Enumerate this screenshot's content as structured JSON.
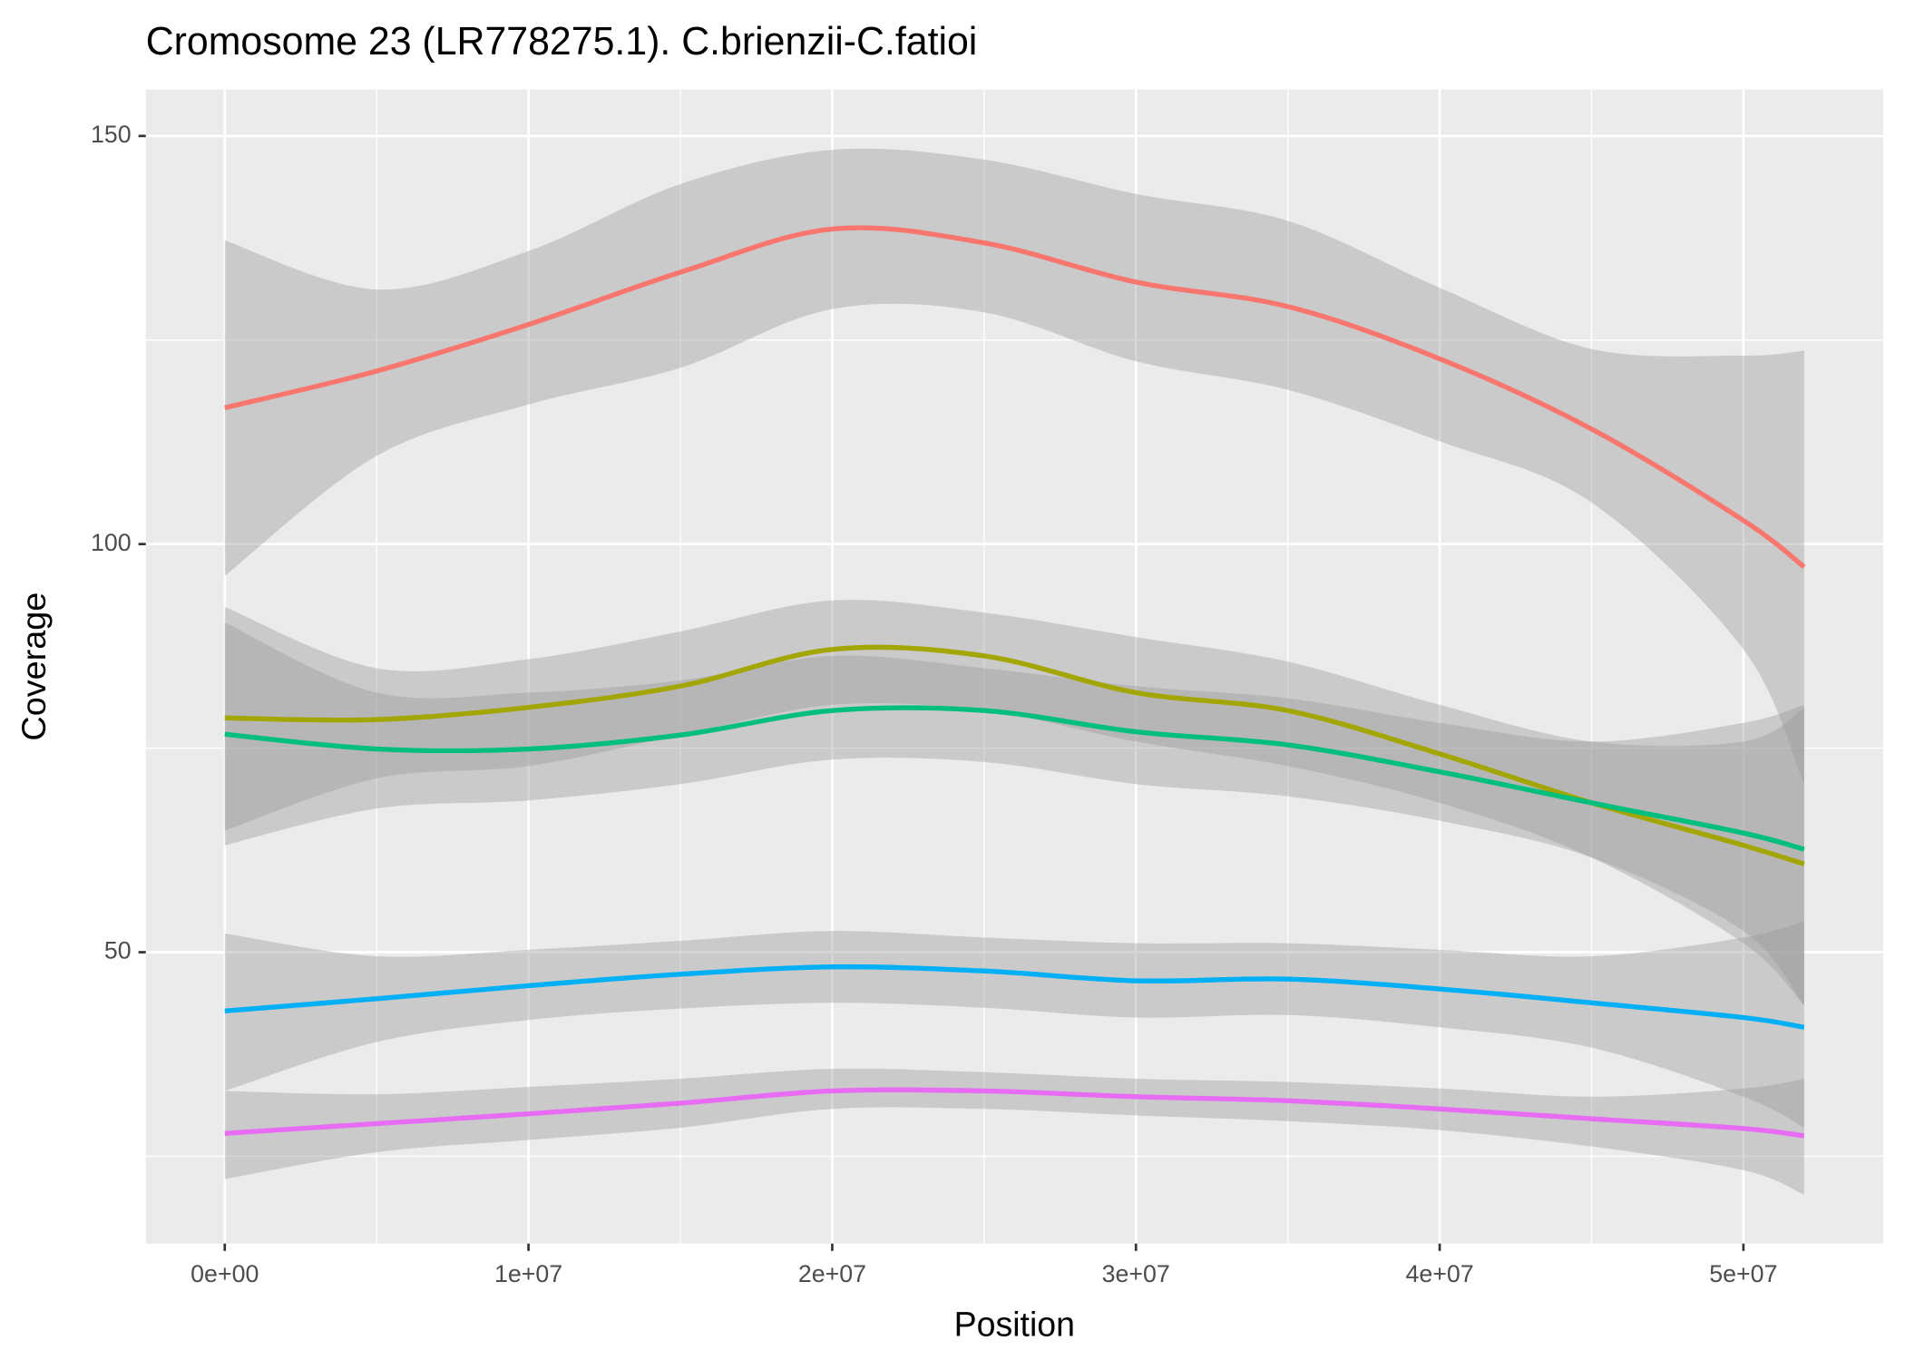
{
  "chart_data": {
    "type": "line",
    "title": "Cromosome 23 (LR778275.1). C.brienzii-C.fatioi",
    "x_label": "Position",
    "y_label": "Coverage",
    "x": [
      0,
      5000000,
      10000000,
      15000000,
      20000000,
      25000000,
      30000000,
      35000000,
      40000000,
      45000000,
      50000000,
      52000000
    ],
    "series": [
      {
        "color": "#F8766D",
        "values": [
          116.7,
          121.2,
          126.9,
          133.3,
          138.6,
          136.9,
          132.1,
          129.1,
          122.7,
          114.1,
          102.9,
          97.2
        ],
        "upper": [
          137.2,
          131.2,
          135.9,
          144.1,
          148.3,
          147.1,
          142.9,
          139.6,
          131.4,
          123.9,
          123.1,
          123.7
        ],
        "lower": [
          96.1,
          110.8,
          117.1,
          121.6,
          128.8,
          128.4,
          122.4,
          118.9,
          112.6,
          105.1,
          87.1,
          70.6
        ]
      },
      {
        "color": "#A3A500",
        "values": [
          78.7,
          78.5,
          80,
          82.6,
          87.1,
          86.3,
          81.8,
          79.6,
          74.3,
          68.3,
          63.1,
          60.8
        ],
        "upper": [
          92.3,
          84.8,
          85.9,
          89.3,
          93.1,
          91.6,
          88.6,
          85.6,
          80.3,
          75.8,
          75.8,
          79.9
        ],
        "lower": [
          64.9,
          71.3,
          72.8,
          76.6,
          80.3,
          79.6,
          75.8,
          72.8,
          68.3,
          61.6,
          51.1,
          43.5
        ]
      },
      {
        "color": "#00BF7D",
        "values": [
          76.7,
          74.9,
          74.9,
          76.6,
          79.6,
          79.6,
          77,
          75.4,
          72.1,
          68.3,
          64.6,
          62.6
        ],
        "upper": [
          90.4,
          81.8,
          81.8,
          83.3,
          86.3,
          84.8,
          82.6,
          81.1,
          78.1,
          75.8,
          78.1,
          80.3
        ],
        "lower": [
          63.1,
          67.6,
          68.6,
          70.6,
          73.6,
          73.3,
          70.6,
          69.1,
          66.1,
          61.6,
          52.6,
          43.5
        ]
      },
      {
        "color": "#00B0F6",
        "values": [
          42.8,
          44.3,
          45.9,
          47.3,
          48.2,
          47.7,
          46.5,
          46.7,
          45.5,
          43.8,
          42,
          40.8
        ],
        "upper": [
          52.3,
          49.5,
          50.3,
          51.4,
          52.6,
          51.8,
          51.1,
          51.1,
          50.3,
          49.5,
          51.8,
          53.8
        ],
        "lower": [
          33,
          39,
          41.7,
          43.1,
          43.8,
          43.2,
          42,
          42.3,
          40.8,
          38.3,
          32.3,
          28.5
        ]
      },
      {
        "color": "#E76BF3",
        "values": [
          27.8,
          29,
          30.2,
          31.5,
          33,
          33,
          32.3,
          31.8,
          30.8,
          29.6,
          28.4,
          27.5
        ],
        "upper": [
          33,
          32.6,
          33.5,
          34.5,
          35.7,
          35.3,
          34.5,
          34.1,
          33.3,
          32.3,
          33.3,
          34.5
        ],
        "lower": [
          22.2,
          25.5,
          27,
          28.5,
          30.8,
          30.8,
          30,
          29.3,
          28.2,
          26.2,
          23.3,
          20.3
        ]
      }
    ],
    "xlim": [
      -2600000,
      54600000
    ],
    "ylim": [
      14.3,
      155.7
    ],
    "xticks": [
      {
        "value": 0,
        "label": "0e+00"
      },
      {
        "value": 10000000,
        "label": "1e+07"
      },
      {
        "value": 20000000,
        "label": "2e+07"
      },
      {
        "value": 30000000,
        "label": "3e+07"
      },
      {
        "value": 40000000,
        "label": "4e+07"
      },
      {
        "value": 50000000,
        "label": "5e+07"
      }
    ],
    "xminorticks": [
      5000000,
      15000000,
      25000000,
      35000000,
      45000000
    ],
    "yticks": [
      50,
      100,
      150
    ],
    "yminorticks": [
      25,
      75,
      125
    ],
    "grid": true,
    "band_color": "#999999"
  }
}
